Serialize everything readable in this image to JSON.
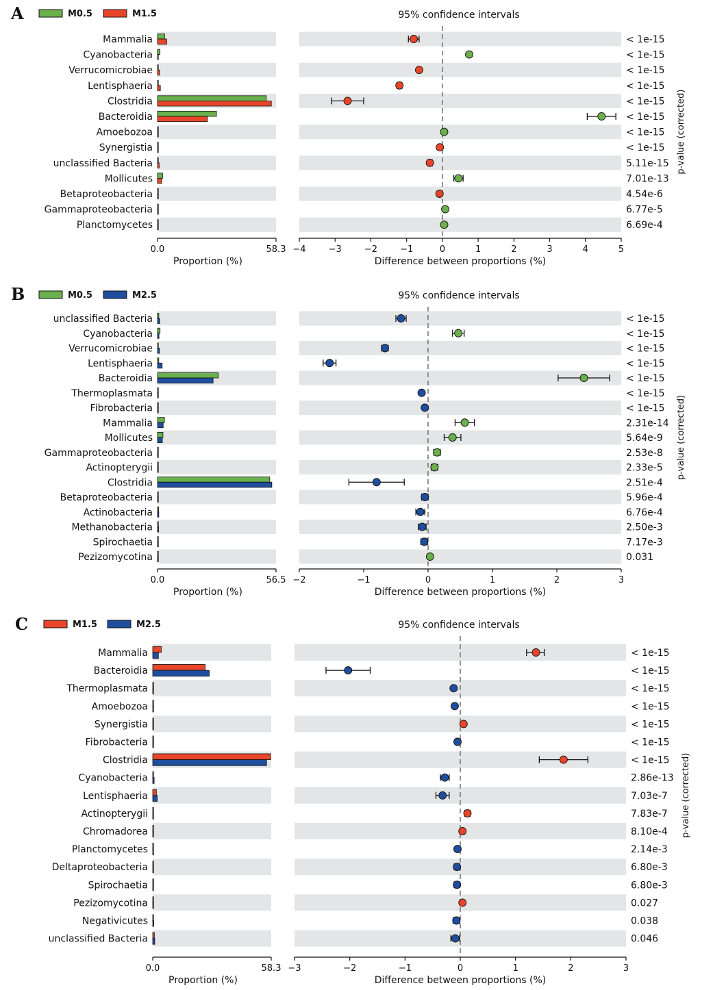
{
  "chart_data": [
    {
      "type": "extended-error-bar",
      "panel": "A",
      "legend": [
        {
          "name": "M0.5",
          "color": "#6ab04c"
        },
        {
          "name": "M1.5",
          "color": "#e8462a"
        }
      ],
      "ci_title": "95% confidence intervals",
      "bar_xlabel": "Proportion (%)",
      "bar_xticks": [
        "0.0",
        "58.3"
      ],
      "bar_max": 58.3,
      "diff_xlabel": "Difference between proportions (%)",
      "diff_xlim": [
        -4,
        5
      ],
      "diff_xticks": [
        "−4",
        "−3",
        "−2",
        "−1",
        "0",
        "1",
        "2",
        "3",
        "4",
        "5"
      ],
      "pvalue_label": "p-value (corrected)",
      "rows": [
        {
          "label": "Mammalia",
          "p1": 3.5,
          "p2": 4.5,
          "diff": -0.8,
          "lo": -0.95,
          "hi": -0.65,
          "winner": 2,
          "pvalue": "< 1e-15"
        },
        {
          "label": "Cyanobacteria",
          "p1": 1.2,
          "p2": 0.4,
          "diff": 0.75,
          "lo": 0.7,
          "hi": 0.8,
          "winner": 1,
          "pvalue": "< 1e-15"
        },
        {
          "label": "Verrucomicrobiae",
          "p1": 0.3,
          "p2": 1.0,
          "diff": -0.65,
          "lo": -0.7,
          "hi": -0.6,
          "winner": 2,
          "pvalue": "< 1e-15"
        },
        {
          "label": "Lentisphaeria",
          "p1": 0.2,
          "p2": 1.4,
          "diff": -1.2,
          "lo": -1.27,
          "hi": -1.13,
          "winner": 2,
          "pvalue": "< 1e-15"
        },
        {
          "label": "Clostridia",
          "p1": 53.5,
          "p2": 56.0,
          "diff": -2.65,
          "lo": -3.1,
          "hi": -2.2,
          "winner": 2,
          "pvalue": "< 1e-15"
        },
        {
          "label": "Bacteroidia",
          "p1": 29.0,
          "p2": 24.5,
          "diff": 4.45,
          "lo": 4.05,
          "hi": 4.85,
          "winner": 1,
          "pvalue": "< 1e-15"
        },
        {
          "label": "Amoebozoa",
          "p1": 0.1,
          "p2": 0.0,
          "diff": 0.05,
          "lo": 0.03,
          "hi": 0.07,
          "winner": 1,
          "pvalue": "< 1e-15"
        },
        {
          "label": "Synergistia",
          "p1": 0.0,
          "p2": 0.1,
          "diff": -0.07,
          "lo": -0.09,
          "hi": -0.05,
          "winner": 2,
          "pvalue": "< 1e-15"
        },
        {
          "label": "unclassified Bacteria",
          "p1": 0.4,
          "p2": 0.8,
          "diff": -0.35,
          "lo": -0.42,
          "hi": -0.28,
          "winner": 2,
          "pvalue": "5.11e-15"
        },
        {
          "label": "Mollicutes",
          "p1": 2.5,
          "p2": 2.0,
          "diff": 0.45,
          "lo": 0.32,
          "hi": 0.58,
          "winner": 1,
          "pvalue": "7.01e-13"
        },
        {
          "label": "Betaproteobacteria",
          "p1": 0.1,
          "p2": 0.2,
          "diff": -0.08,
          "lo": -0.12,
          "hi": -0.04,
          "winner": 2,
          "pvalue": "4.54e-6"
        },
        {
          "label": "Gammaproteobacteria",
          "p1": 0.4,
          "p2": 0.3,
          "diff": 0.08,
          "lo": 0.04,
          "hi": 0.12,
          "winner": 1,
          "pvalue": "6.77e-5"
        },
        {
          "label": "Planctomycetes",
          "p1": 0.2,
          "p2": 0.1,
          "diff": 0.05,
          "lo": 0.02,
          "hi": 0.08,
          "winner": 1,
          "pvalue": "6.69e-4"
        }
      ]
    },
    {
      "type": "extended-error-bar",
      "panel": "B",
      "legend": [
        {
          "name": "M0.5",
          "color": "#6ab04c"
        },
        {
          "name": "M2.5",
          "color": "#1f4e9e"
        }
      ],
      "ci_title": "95% confidence intervals",
      "bar_xlabel": "Proportion (%)",
      "bar_xticks": [
        "0.0",
        "56.5"
      ],
      "bar_max": 56.5,
      "diff_xlabel": "Difference between proportions (%)",
      "diff_xlim": [
        -2,
        3
      ],
      "diff_xticks": [
        "−2",
        "−1",
        "0",
        "1",
        "2",
        "3"
      ],
      "pvalue_label": "p-value (corrected)",
      "rows": [
        {
          "label": "unclassified Bacteria",
          "p1": 0.6,
          "p2": 1.0,
          "diff": -0.42,
          "lo": -0.5,
          "hi": -0.34,
          "winner": 2,
          "pvalue": "< 1e-15"
        },
        {
          "label": "Cyanobacteria",
          "p1": 1.2,
          "p2": 0.7,
          "diff": 0.47,
          "lo": 0.38,
          "hi": 0.56,
          "winner": 1,
          "pvalue": "< 1e-15"
        },
        {
          "label": "Verrucomicrobiae",
          "p1": 0.3,
          "p2": 0.9,
          "diff": -0.67,
          "lo": -0.72,
          "hi": -0.62,
          "winner": 2,
          "pvalue": "< 1e-15"
        },
        {
          "label": "Lentisphaeria",
          "p1": 0.6,
          "p2": 2.2,
          "diff": -1.53,
          "lo": -1.63,
          "hi": -1.43,
          "winner": 2,
          "pvalue": "< 1e-15"
        },
        {
          "label": "Bacteroidia",
          "p1": 29.0,
          "p2": 26.5,
          "diff": 2.42,
          "lo": 2.02,
          "hi": 2.82,
          "winner": 1,
          "pvalue": "< 1e-15"
        },
        {
          "label": "Thermoplasmata",
          "p1": 0.0,
          "p2": 0.1,
          "diff": -0.1,
          "lo": -0.13,
          "hi": -0.07,
          "winner": 2,
          "pvalue": "< 1e-15"
        },
        {
          "label": "Fibrobacteria",
          "p1": 0.0,
          "p2": 0.1,
          "diff": -0.05,
          "lo": -0.08,
          "hi": -0.02,
          "winner": 2,
          "pvalue": "< 1e-15"
        },
        {
          "label": "Mammalia",
          "p1": 3.3,
          "p2": 2.7,
          "diff": 0.57,
          "lo": 0.42,
          "hi": 0.72,
          "winner": 1,
          "pvalue": "2.31e-14"
        },
        {
          "label": "Mollicutes",
          "p1": 2.6,
          "p2": 2.3,
          "diff": 0.38,
          "lo": 0.25,
          "hi": 0.51,
          "winner": 1,
          "pvalue": "5.64e-9"
        },
        {
          "label": "Gammaproteobacteria",
          "p1": 0.4,
          "p2": 0.3,
          "diff": 0.14,
          "lo": 0.09,
          "hi": 0.19,
          "winner": 1,
          "pvalue": "2.53e-8"
        },
        {
          "label": "Actinopterygii",
          "p1": 0.2,
          "p2": 0.1,
          "diff": 0.1,
          "lo": 0.05,
          "hi": 0.15,
          "winner": 1,
          "pvalue": "2.33e-5"
        },
        {
          "label": "Clostridia",
          "p1": 53.5,
          "p2": 54.5,
          "diff": -0.8,
          "lo": -1.23,
          "hi": -0.37,
          "winner": 2,
          "pvalue": "2.51e-4"
        },
        {
          "label": "Betaproteobacteria",
          "p1": 0.1,
          "p2": 0.2,
          "diff": -0.05,
          "lo": -0.1,
          "hi": 0.0,
          "winner": 2,
          "pvalue": "5.96e-4"
        },
        {
          "label": "Actinobacteria",
          "p1": 0.5,
          "p2": 0.6,
          "diff": -0.12,
          "lo": -0.19,
          "hi": -0.05,
          "winner": 2,
          "pvalue": "6.76e-4"
        },
        {
          "label": "Methanobacteria",
          "p1": 0.4,
          "p2": 0.5,
          "diff": -0.09,
          "lo": -0.15,
          "hi": -0.03,
          "winner": 2,
          "pvalue": "2.50e-3"
        },
        {
          "label": "Spirochaetia",
          "p1": 0.3,
          "p2": 0.4,
          "diff": -0.06,
          "lo": -0.11,
          "hi": -0.01,
          "winner": 2,
          "pvalue": "7.17e-3"
        },
        {
          "label": "Pezizomycotina",
          "p1": 0.2,
          "p2": 0.1,
          "diff": 0.03,
          "lo": 0.0,
          "hi": 0.06,
          "winner": 1,
          "pvalue": "0.031"
        }
      ]
    },
    {
      "type": "extended-error-bar",
      "panel": "C",
      "legend": [
        {
          "name": "M1.5",
          "color": "#e8462a"
        },
        {
          "name": "M2.5",
          "color": "#1f4e9e"
        }
      ],
      "ci_title": "95% confidence intervals",
      "bar_xlabel": "Proportion (%)",
      "bar_xticks": [
        "0.0",
        "58.3"
      ],
      "bar_max": 58.3,
      "diff_xlabel": "Difference between proportions (%)",
      "diff_xlim": [
        -3,
        3
      ],
      "diff_xticks": [
        "−3",
        "−2",
        "−1",
        "0",
        "1",
        "2",
        "3"
      ],
      "pvalue_label": "p-value (corrected)",
      "rows": [
        {
          "label": "Mammalia",
          "p1": 4.2,
          "p2": 2.8,
          "diff": 1.37,
          "lo": 1.2,
          "hi": 1.52,
          "winner": 1,
          "pvalue": "< 1e-15"
        },
        {
          "label": "Bacteroidia",
          "p1": 25.8,
          "p2": 27.8,
          "diff": -2.03,
          "lo": -2.43,
          "hi": -1.63,
          "winner": 2,
          "pvalue": "< 1e-15"
        },
        {
          "label": "Thermoplasmata",
          "p1": 0.0,
          "p2": 0.1,
          "diff": -0.12,
          "lo": -0.15,
          "hi": -0.09,
          "winner": 2,
          "pvalue": "< 1e-15"
        },
        {
          "label": "Amoebozoa",
          "p1": 0.0,
          "p2": 0.1,
          "diff": -0.1,
          "lo": -0.13,
          "hi": -0.07,
          "winner": 2,
          "pvalue": "< 1e-15"
        },
        {
          "label": "Synergistia",
          "p1": 0.1,
          "p2": 0.0,
          "diff": 0.06,
          "lo": 0.03,
          "hi": 0.09,
          "winner": 1,
          "pvalue": "< 1e-15"
        },
        {
          "label": "Fibrobacteria",
          "p1": 0.0,
          "p2": 0.1,
          "diff": -0.05,
          "lo": -0.08,
          "hi": -0.02,
          "winner": 2,
          "pvalue": "< 1e-15"
        },
        {
          "label": "Clostridia",
          "p1": 58.0,
          "p2": 56.0,
          "diff": 1.87,
          "lo": 1.43,
          "hi": 2.31,
          "winner": 1,
          "pvalue": "< 1e-15"
        },
        {
          "label": "Cyanobacteria",
          "p1": 0.4,
          "p2": 0.7,
          "diff": -0.28,
          "lo": -0.36,
          "hi": -0.2,
          "winner": 2,
          "pvalue": "2.86e-13"
        },
        {
          "label": "Lentisphaeria",
          "p1": 1.8,
          "p2": 2.2,
          "diff": -0.32,
          "lo": -0.44,
          "hi": -0.2,
          "winner": 2,
          "pvalue": "7.03e-7"
        },
        {
          "label": "Actinopterygii",
          "p1": 0.3,
          "p2": 0.1,
          "diff": 0.13,
          "lo": 0.08,
          "hi": 0.18,
          "winner": 1,
          "pvalue": "7.83e-7"
        },
        {
          "label": "Chromadorea",
          "p1": 0.2,
          "p2": 0.1,
          "diff": 0.04,
          "lo": 0.01,
          "hi": 0.07,
          "winner": 1,
          "pvalue": "8.10e-4"
        },
        {
          "label": "Planctomycetes",
          "p1": 0.1,
          "p2": 0.2,
          "diff": -0.05,
          "lo": -0.09,
          "hi": -0.01,
          "winner": 2,
          "pvalue": "2.14e-3"
        },
        {
          "label": "Deltaproteobacteria",
          "p1": 0.1,
          "p2": 0.2,
          "diff": -0.06,
          "lo": -0.11,
          "hi": -0.01,
          "winner": 2,
          "pvalue": "6.80e-3"
        },
        {
          "label": "Spirochaetia",
          "p1": 0.3,
          "p2": 0.4,
          "diff": -0.06,
          "lo": -0.11,
          "hi": -0.01,
          "winner": 2,
          "pvalue": "6.80e-3"
        },
        {
          "label": "Pezizomycotina",
          "p1": 0.2,
          "p2": 0.1,
          "diff": 0.04,
          "lo": 0.01,
          "hi": 0.07,
          "winner": 1,
          "pvalue": "0.027"
        },
        {
          "label": "Negativicutes",
          "p1": 0.4,
          "p2": 0.5,
          "diff": -0.07,
          "lo": -0.13,
          "hi": -0.01,
          "winner": 2,
          "pvalue": "0.038"
        },
        {
          "label": "unclassified Bacteria",
          "p1": 0.8,
          "p2": 1.0,
          "diff": -0.09,
          "lo": -0.17,
          "hi": -0.01,
          "winner": 2,
          "pvalue": "0.046"
        }
      ]
    }
  ]
}
